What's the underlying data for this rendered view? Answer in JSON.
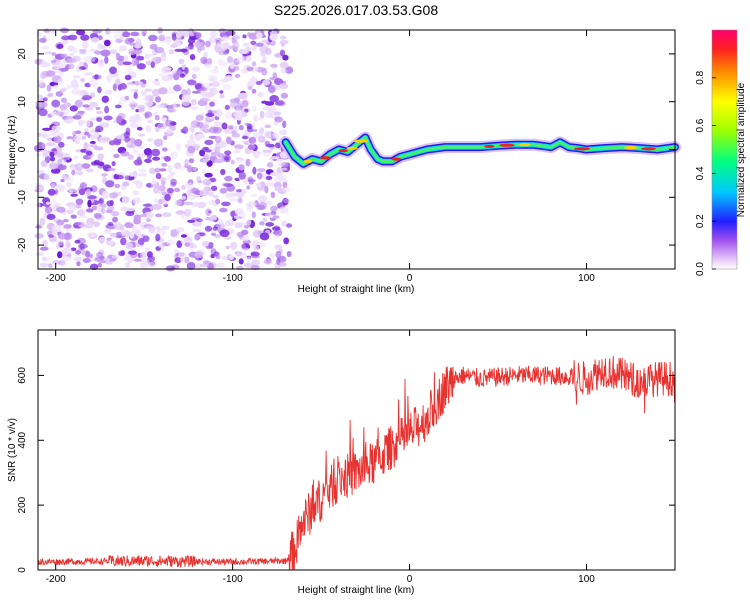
{
  "title": "S225.2026.017.03.53.G08",
  "chart_data": [
    {
      "type": "heatmap",
      "xlabel": "Height of straight line (km)",
      "ylabel": "Frequency (Hz)",
      "xlim": [
        -210,
        150
      ],
      "ylim": [
        -25,
        25
      ],
      "xticks": [
        "-200",
        "-100",
        "0",
        "100"
      ],
      "yticks": [
        "20",
        "10",
        "0",
        "-10",
        "-20"
      ],
      "noise_region_x": [
        -210,
        -68
      ],
      "frequency_ridge": {
        "x": [
          -70,
          -65,
          -60,
          -55,
          -50,
          -45,
          -40,
          -35,
          -30,
          -25,
          -22,
          -18,
          -15,
          -10,
          -5,
          0,
          5,
          10,
          20,
          30,
          40,
          50,
          60,
          70,
          80,
          85,
          90,
          95,
          100,
          110,
          120,
          130,
          140,
          150
        ],
        "y": [
          1.5,
          -1.5,
          -3,
          -2,
          -2.5,
          -1,
          0,
          -0.5,
          1,
          2.5,
          0,
          -2,
          -2.5,
          -2.5,
          -1.5,
          -1,
          -0.5,
          0,
          0.5,
          0.5,
          0.5,
          0.8,
          1,
          1,
          0.5,
          1.5,
          0.5,
          0.3,
          0,
          0.3,
          0.5,
          0.3,
          0,
          0.5
        ]
      },
      "colorbar": {
        "label": "Normalized spectral amplitude",
        "range": [
          0,
          1
        ],
        "ticks": [
          "0.0",
          "0.2",
          "0.4",
          "0.6",
          "0.8"
        ]
      }
    },
    {
      "type": "line",
      "xlabel": "Height of straight line (km)",
      "ylabel": "SNR (10 * v/v)",
      "xlim": [
        -210,
        150
      ],
      "ylim": [
        0,
        740
      ],
      "xticks": [
        "-200",
        "-100",
        "0",
        "100"
      ],
      "yticks": [
        "0",
        "200",
        "400",
        "600"
      ],
      "series": [
        {
          "name": "SNR",
          "color": "#e8322f",
          "x": [
            -210,
            -150,
            -100,
            -70,
            -65,
            -60,
            -50,
            -40,
            -30,
            -20,
            -10,
            0,
            10,
            20,
            25,
            30,
            40,
            60,
            80,
            100,
            110,
            120,
            130,
            140,
            150
          ],
          "values": [
            25,
            28,
            25,
            28,
            60,
            150,
            220,
            280,
            300,
            330,
            380,
            420,
            470,
            560,
            590,
            600,
            590,
            600,
            600,
            590,
            620,
            600,
            580,
            590,
            590
          ]
        }
      ]
    }
  ]
}
